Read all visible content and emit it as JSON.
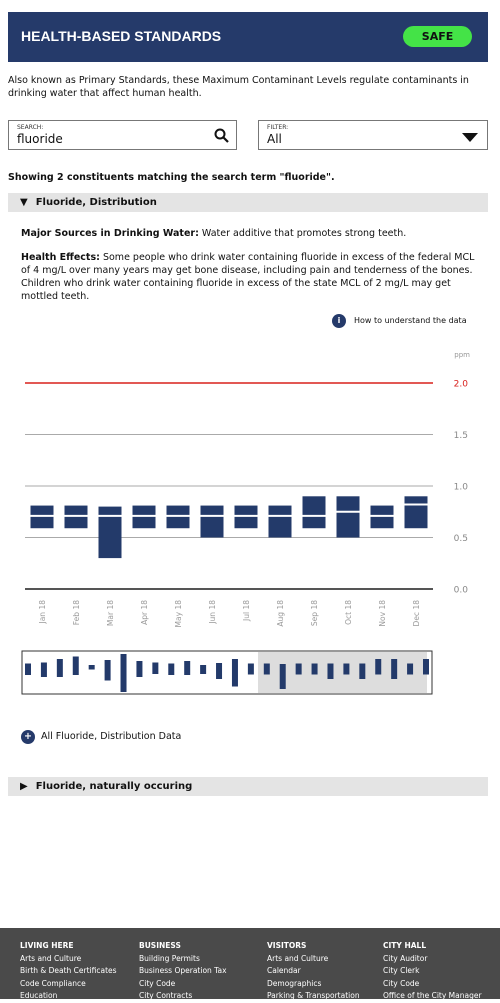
{
  "header": {
    "title": "HEALTH-BASED STANDARDS",
    "badge": "SAFE"
  },
  "description": "Also known as Primary Standards, these Maximum Contaminant Levels regulate contaminants in drinking water that affect human health.",
  "search": {
    "label": "SEARCH:",
    "value": "fluoride"
  },
  "filter": {
    "label": "FILTER:",
    "value": "All"
  },
  "results": "Showing 2 constituents matching the search term \"fluoride\".",
  "section1": {
    "title": "Fluoride, Distribution",
    "sources_label": "Major Sources in Drinking Water:",
    "sources_text": "Water additive that promotes strong teeth.",
    "effects_label": "Health Effects:",
    "effects_text": "Some people who drink water containing fluoride in excess of the federal MCL of 4 mg/L over many years may get bone disease, including pain and tenderness of the bones. Children who drink water containing fluoride in excess of the state MCL of 2 mg/L may get mottled teeth.",
    "info": "How to understand the data",
    "all_data": "All Fluoride, Distribution Data"
  },
  "chart_data": {
    "type": "range-bar",
    "y_label": "ppm",
    "categories": [
      "Jan 18",
      "Feb 18",
      "Mar 18",
      "Apr 18",
      "May 18",
      "Jun 18",
      "Jul 18",
      "Aug 18",
      "Sep 18",
      "Oct 18",
      "Nov 18",
      "Dec 18"
    ],
    "low": [
      0.59,
      0.59,
      0.3,
      0.59,
      0.59,
      0.5,
      0.59,
      0.5,
      0.59,
      0.5,
      0.59,
      0.59
    ],
    "high": [
      0.81,
      0.81,
      0.8,
      0.81,
      0.81,
      0.81,
      0.81,
      0.81,
      0.9,
      0.9,
      0.81,
      0.9
    ],
    "mid": [
      0.71,
      0.71,
      0.71,
      0.71,
      0.71,
      0.71,
      0.71,
      0.71,
      0.71,
      0.75,
      0.71,
      0.82
    ],
    "color": "#233a6a",
    "limit": 2,
    "limit_color": "#d9201c",
    "ylim": [
      0,
      2.15
    ],
    "yticks": [
      {
        "value": 0,
        "label": "0.0"
      },
      0.5,
      {
        "value": 1,
        "label": "1.0"
      },
      1.5,
      {
        "value": 2,
        "label": "2.0"
      }
    ],
    "grid": true,
    "overview_low": [
      0.58,
      0.54,
      0.54,
      0.58,
      0.69,
      0.47,
      0.24,
      0.54,
      0.6,
      0.58,
      0.58,
      0.6,
      0.5,
      0.35
    ],
    "overview_high": [
      0.81,
      0.83,
      0.9,
      0.95,
      0.78,
      0.88,
      1.0,
      0.86,
      0.83,
      0.81,
      0.86,
      0.78,
      0.82,
      0.9
    ]
  },
  "section2": {
    "title": "Fluoride, naturally occuring"
  },
  "footer": [
    {
      "title": "LIVING HERE",
      "items": [
        "Arts and Culture",
        "Birth & Death Certificates",
        "Code Compliance",
        "Education"
      ]
    },
    {
      "title": "BUSINESS",
      "items": [
        "Building Permits",
        "Business Operation Tax",
        "City Code",
        "City Contracts"
      ]
    },
    {
      "title": "VISITORS",
      "items": [
        "Arts and Culture",
        "Calendar",
        "Demographics",
        "Parking & Transportation"
      ]
    },
    {
      "title": "CITY HALL",
      "items": [
        "City Auditor",
        "City Clerk",
        "City Code",
        "Office of the City Manager"
      ]
    }
  ]
}
